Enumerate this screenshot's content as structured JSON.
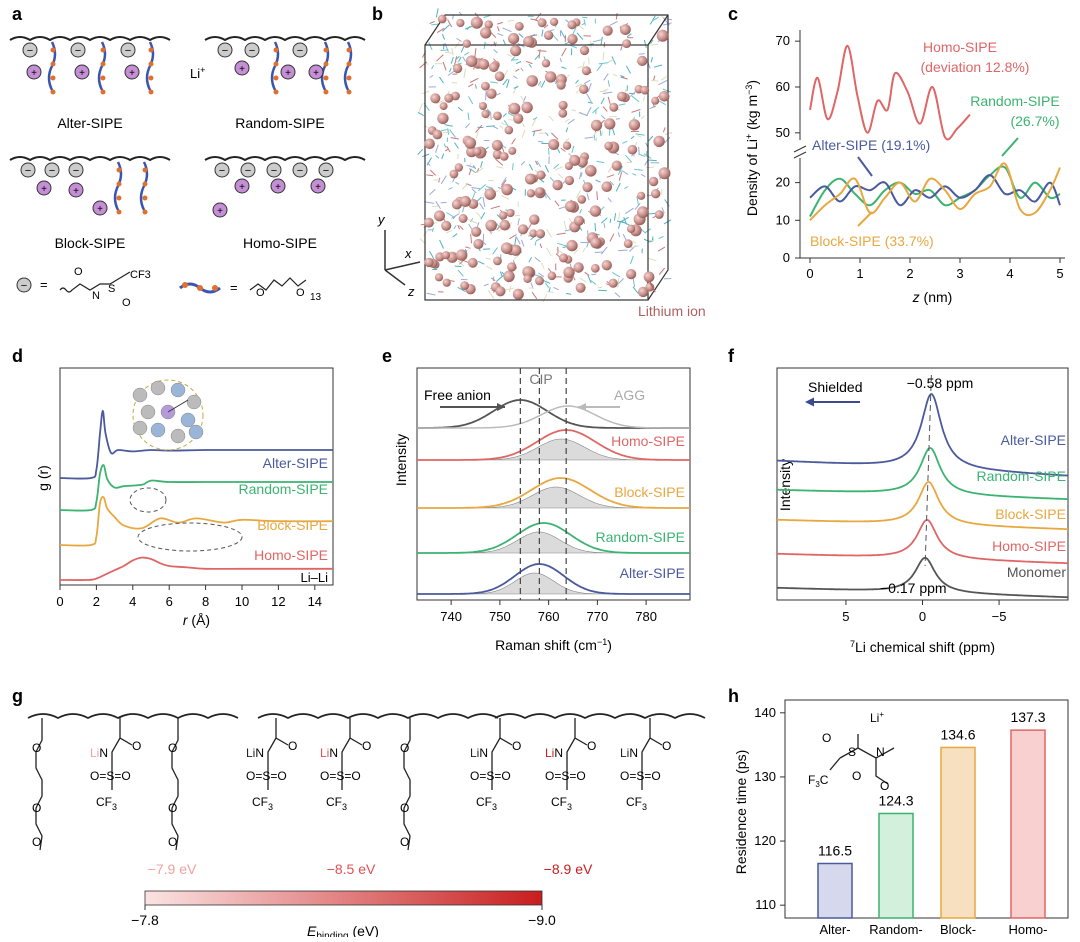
{
  "panels": {
    "a": {
      "letter": "a",
      "labels": [
        "Alter-SIPE",
        "Random-SIPE",
        "Block-SIPE",
        "Homo-SIPE"
      ],
      "li_label": "Li+",
      "legend_anion_formula": "CF3",
      "legend_peo_repeat": "13",
      "minus_sign": "−",
      "plus_sign": "+"
    },
    "b": {
      "letter": "b",
      "axis_x": "x",
      "axis_y": "y",
      "axis_z": "z",
      "lithium_label": "Lithium ion"
    },
    "d": {
      "letter": "d",
      "annotation": "Li–Li"
    },
    "e": {
      "letter": "e",
      "free_anion": "Free anion",
      "cip": "CIP",
      "agg": "AGG",
      "free_anion_position_cm": 754.2,
      "cip_position_cm": 758.1,
      "agg_position_cm": 763.6
    },
    "f": {
      "letter": "f",
      "shielded": "Shielded",
      "peak_top": "−0.58 ppm",
      "peak_bottom": "−0.17 ppm"
    },
    "g": {
      "letter": "g",
      "energies": [
        "−7.9 eV",
        "−8.5 eV",
        "−8.9 eV"
      ],
      "energy_colors": [
        "#f0a0a0",
        "#e05050",
        "#c81e1e"
      ],
      "colorbar_min": "−7.8",
      "colorbar_max": "−9.0",
      "colorbar_label": "Ebinding (eV)",
      "colorbar_colors": [
        "#fbe3e3",
        "#c81e1e"
      ],
      "atoms": {
        "O": "O",
        "Li": "Li",
        "LiN": "LiN",
        "N": "N",
        "S": "S",
        "CF3": "CF3",
        "OSO": "O=S=O"
      }
    },
    "h": {
      "letter": "h",
      "li_plus": "Li+",
      "cf3": "F3C",
      "s": "S",
      "n": "N",
      "o": "O"
    }
  },
  "chart_data": [
    {
      "id": "c",
      "type": "line",
      "xlabel": "z (nm)",
      "ylabel": "Density of Li+ (kg m−3)",
      "xlim": [
        -0.2,
        5.1
      ],
      "xticks": [
        0,
        1,
        2,
        3,
        4,
        5
      ],
      "yticks_lower": [
        0,
        10,
        20
      ],
      "yticks_upper": [
        50,
        60,
        70
      ],
      "series": [
        {
          "name": "Homo-SIPE",
          "annotation": "Homo-SIPE",
          "annotation2": "(deviation 12.8%)",
          "color": "#e06666",
          "x": [
            0,
            0.15,
            0.35,
            0.55,
            0.75,
            0.95,
            1.15,
            1.35,
            1.55,
            1.7,
            1.95,
            2.2,
            2.45,
            2.7,
            2.95,
            3.2
          ],
          "y": [
            55,
            62,
            53,
            59,
            69,
            58,
            50,
            57,
            55,
            63,
            59,
            52,
            60,
            49,
            51,
            54
          ]
        },
        {
          "name": "Random-SIPE",
          "annotation": "Random-SIPE",
          "annotation2": "(26.7%)",
          "color": "#3cb371",
          "x": [
            0,
            0.3,
            0.6,
            0.9,
            1.2,
            1.5,
            1.8,
            2.1,
            2.4,
            2.7,
            3.0,
            3.3,
            3.6,
            3.9,
            4.2,
            4.5,
            4.8,
            5.0
          ],
          "y": [
            11,
            18,
            21,
            17,
            14,
            18,
            20,
            17,
            18,
            14,
            16,
            18,
            22,
            24,
            16,
            20,
            16,
            17
          ]
        },
        {
          "name": "Alter-SIPE",
          "annotation": "Alter-SIPE (19.1%)",
          "color": "#4a5a9c",
          "x": [
            0,
            0.3,
            0.6,
            0.9,
            1.2,
            1.5,
            1.8,
            2.1,
            2.4,
            2.7,
            3.0,
            3.3,
            3.6,
            3.9,
            4.2,
            4.5,
            4.8,
            5.0
          ],
          "y": [
            16,
            19,
            15,
            19,
            18,
            20,
            14,
            18,
            16,
            19,
            16,
            18,
            22,
            17,
            18,
            15,
            20,
            14
          ]
        },
        {
          "name": "Block-SIPE",
          "annotation": "Block-SIPE (33.7%)",
          "color": "#e8a840",
          "x": [
            0,
            0.3,
            0.6,
            0.9,
            1.2,
            1.5,
            1.8,
            2.1,
            2.4,
            2.7,
            3.0,
            3.3,
            3.6,
            3.9,
            4.2,
            4.5,
            4.8,
            5.0
          ],
          "y": [
            10,
            14,
            17,
            21,
            12,
            16,
            20,
            15,
            21,
            18,
            13,
            17,
            19,
            25,
            13,
            12,
            18,
            24
          ]
        }
      ]
    },
    {
      "id": "d",
      "type": "line",
      "xlabel": "r (Å)",
      "ylabel": "g (r)",
      "xlim": [
        0,
        15
      ],
      "xticks": [
        0,
        2,
        4,
        6,
        8,
        10,
        12,
        14
      ],
      "series": [
        {
          "name": "Alter-SIPE",
          "color": "#4a5a9c",
          "offset": 3.0,
          "r": [
            0,
            1.7,
            2.0,
            2.2,
            2.35,
            2.5,
            2.8,
            3.2,
            4.0,
            5,
            6,
            8,
            10,
            12,
            15
          ],
          "g": [
            0,
            0,
            0.3,
            1.6,
            2.4,
            1.6,
            0.9,
            1.0,
            0.95,
            1.0,
            0.98,
            1.0,
            1.0,
            1.0,
            1.0
          ]
        },
        {
          "name": "Random-SIPE",
          "color": "#3cb371",
          "offset": 2.0,
          "r": [
            0,
            1.7,
            2.0,
            2.2,
            2.4,
            2.6,
            3.0,
            3.5,
            4.5,
            5,
            6,
            8,
            10,
            12,
            15
          ],
          "g": [
            0,
            0,
            0.3,
            1.3,
            1.6,
            1.1,
            0.8,
            0.85,
            0.9,
            1.05,
            1.0,
            1.0,
            1.0,
            1.0,
            1.0
          ]
        },
        {
          "name": "Block-SIPE",
          "color": "#e8a840",
          "offset": 1.0,
          "r": [
            0,
            1.7,
            2.0,
            2.2,
            2.4,
            2.6,
            3.0,
            3.5,
            4.5,
            5.5,
            6.5,
            7.5,
            9,
            10,
            12,
            15
          ],
          "g": [
            0,
            0,
            0.3,
            1.5,
            1.7,
            1.3,
            1.0,
            0.7,
            0.6,
            0.95,
            0.8,
            0.95,
            0.8,
            0.9,
            0.85,
            0.85
          ]
        },
        {
          "name": "Homo-SIPE",
          "color": "#e06666",
          "offset": 0,
          "r": [
            0,
            1.5,
            2.0,
            2.5,
            3.0,
            3.5,
            4.0,
            4.5,
            5.0,
            5.5,
            6,
            7,
            8,
            10,
            12,
            15
          ],
          "g": [
            0,
            0,
            0.05,
            0.2,
            0.35,
            0.5,
            0.7,
            0.8,
            0.75,
            0.6,
            0.5,
            0.45,
            0.4,
            0.4,
            0.4,
            0.4
          ]
        }
      ]
    },
    {
      "id": "e",
      "type": "line",
      "xlabel": "Raman shift (cm−1)",
      "ylabel": "Intensity",
      "xlim": [
        733,
        789
      ],
      "xticks": [
        740,
        750,
        760,
        770,
        780
      ],
      "series": [
        {
          "name": "Free anion / AGG reference",
          "color": "#555555",
          "center": 754.2,
          "width": 5.5
        },
        {
          "name": "Homo-SIPE",
          "color": "#e06666",
          "center": 763.6,
          "width": 6.0
        },
        {
          "name": "Block-SIPE",
          "color": "#e8a840",
          "center": 762.5,
          "width": 6.0
        },
        {
          "name": "Random-SIPE",
          "color": "#3cb371",
          "center": 759.0,
          "width": 5.5
        },
        {
          "name": "Alter-SIPE",
          "color": "#4a5a9c",
          "center": 758.1,
          "width": 5.0
        }
      ]
    },
    {
      "id": "f",
      "type": "line",
      "xlabel": "7Li chemical shift (ppm)",
      "ylabel": "Intensity",
      "xlim": [
        9.5,
        -9.5
      ],
      "xticks": [
        -5,
        0,
        5
      ],
      "series": [
        {
          "name": "Alter-SIPE",
          "color": "#4a5a9c",
          "center": -0.58,
          "height": 1.0
        },
        {
          "name": "Random-SIPE",
          "color": "#3cb371",
          "center": -0.5,
          "height": 0.75
        },
        {
          "name": "Block-SIPE",
          "color": "#e8a840",
          "center": -0.4,
          "height": 0.7
        },
        {
          "name": "Homo-SIPE",
          "color": "#e06666",
          "center": -0.3,
          "height": 0.55
        },
        {
          "name": "Monomer",
          "color": "#555555",
          "center": -0.17,
          "height": 0.4
        }
      ]
    },
    {
      "id": "h",
      "type": "bar",
      "categories": [
        "Alter-",
        "Random-",
        "Block-",
        "Homo-"
      ],
      "values": [
        116.5,
        124.3,
        134.6,
        137.3
      ],
      "value_labels": [
        "116.5",
        "124.3",
        "134.6",
        "137.3"
      ],
      "colors": [
        "#d6d9ee",
        "#d2f0dc",
        "#f6e0c0",
        "#f9d0d0"
      ],
      "edge_colors": [
        "#4a5a9c",
        "#3cb371",
        "#e8a840",
        "#e06666"
      ],
      "ylabel": "Residence time (ps)",
      "ylim": [
        108,
        142
      ],
      "yticks": [
        110,
        120,
        130,
        140
      ]
    }
  ]
}
